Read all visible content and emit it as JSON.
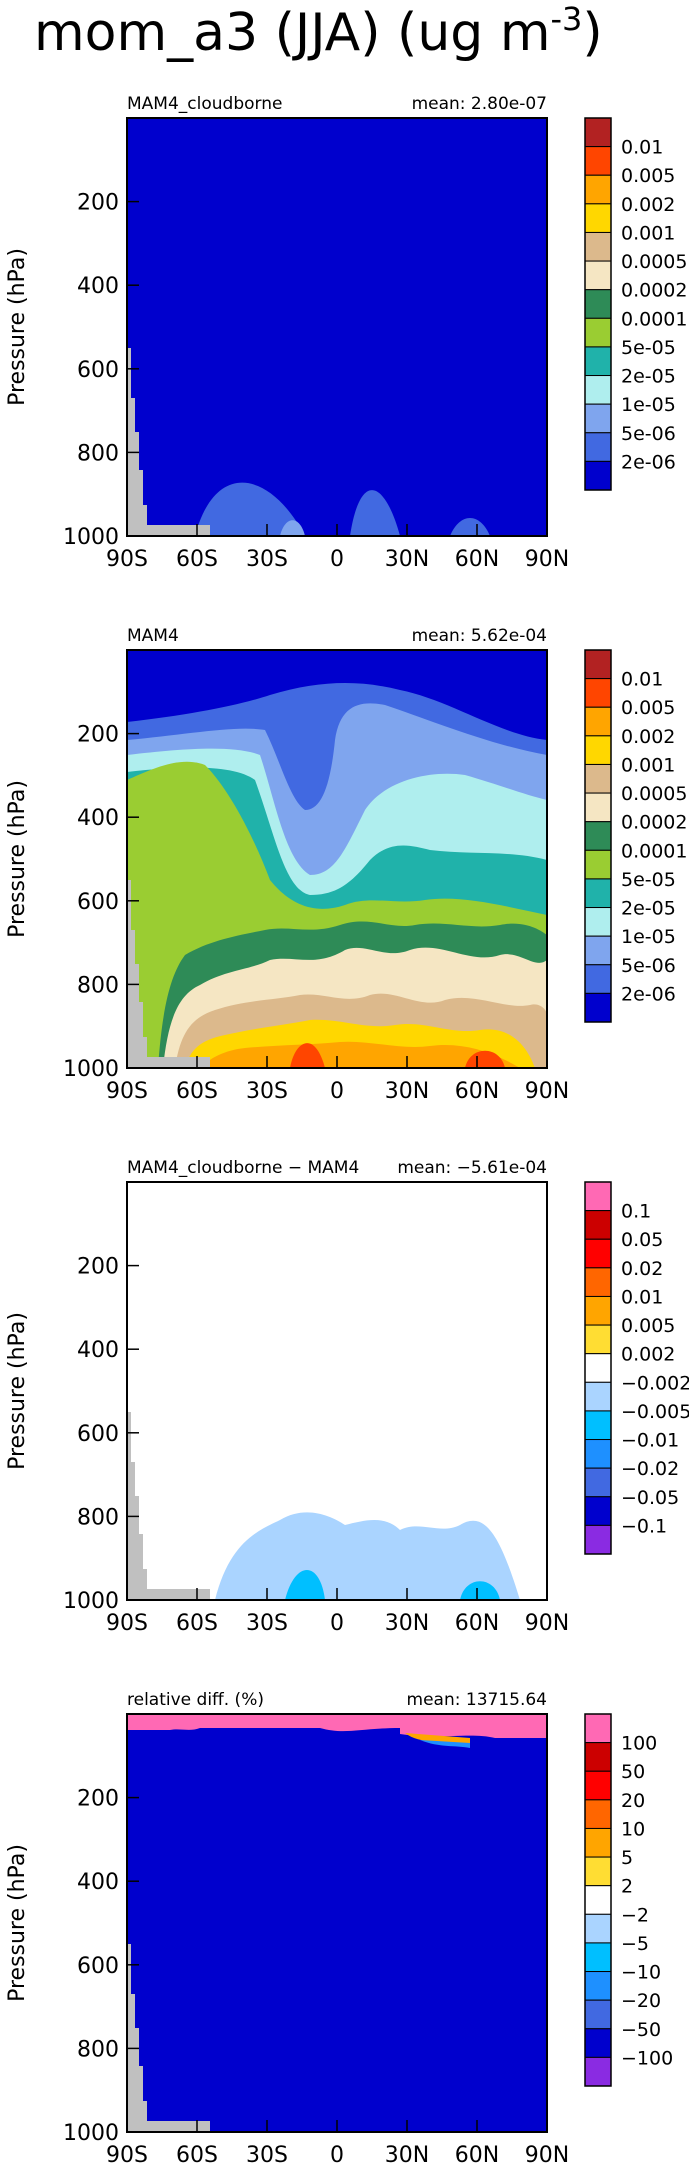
{
  "figure": {
    "title_main": "mom_a3 (JJA) (ug m",
    "title_exp": "-3",
    "title_close": ")"
  },
  "chart_data": [
    {
      "type": "heatmap",
      "id": "panel-1",
      "title": "MAM4_cloudborne",
      "stat_label": "mean:",
      "stat_value": "2.80e-07",
      "ylabel": "Pressure (hPa)",
      "xlabel": "",
      "x_ticks": [
        "90S",
        "60S",
        "30S",
        "0",
        "30N",
        "60N",
        "90N"
      ],
      "y_ticks": [
        "200",
        "400",
        "600",
        "800",
        "1000"
      ],
      "xlim": [
        -90,
        90
      ],
      "ylim": [
        1000,
        0
      ],
      "levels": [
        "0.01",
        "0.005",
        "0.002",
        "0.001",
        "0.0005",
        "0.0002",
        "0.0001",
        "5e-05",
        "2e-05",
        "1e-05",
        "5e-06",
        "2e-06"
      ],
      "colors": [
        "#b22222",
        "#ff4500",
        "#ffa500",
        "#ffd700",
        "#dcb98c",
        "#f5e6c3",
        "#2e8b57",
        "#9acd32",
        "#20b2aa",
        "#afeeee",
        "#7fa5ee",
        "#4169e1",
        "#0000cd"
      ],
      "background_level_index": 12
    },
    {
      "type": "heatmap",
      "id": "panel-2",
      "title": "MAM4",
      "stat_label": "mean:",
      "stat_value": "5.62e-04",
      "ylabel": "Pressure (hPa)",
      "xlabel": "",
      "x_ticks": [
        "90S",
        "60S",
        "30S",
        "0",
        "30N",
        "60N",
        "90N"
      ],
      "y_ticks": [
        "200",
        "400",
        "600",
        "800",
        "1000"
      ],
      "xlim": [
        -90,
        90
      ],
      "ylim": [
        1000,
        0
      ],
      "levels": [
        "0.01",
        "0.005",
        "0.002",
        "0.001",
        "0.0005",
        "0.0002",
        "0.0001",
        "5e-05",
        "2e-05",
        "1e-05",
        "5e-06",
        "2e-06"
      ],
      "colors": [
        "#b22222",
        "#ff4500",
        "#ffa500",
        "#ffd700",
        "#dcb98c",
        "#f5e6c3",
        "#2e8b57",
        "#9acd32",
        "#20b2aa",
        "#afeeee",
        "#7fa5ee",
        "#4169e1",
        "#0000cd"
      ],
      "background_level_index": 12
    },
    {
      "type": "heatmap",
      "id": "panel-3",
      "title": "MAM4_cloudborne − MAM4",
      "stat_label": "mean:",
      "stat_value": "−5.61e-04",
      "ylabel": "Pressure (hPa)",
      "xlabel": "",
      "x_ticks": [
        "90S",
        "60S",
        "30S",
        "0",
        "30N",
        "60N",
        "90N"
      ],
      "y_ticks": [
        "200",
        "400",
        "600",
        "800",
        "1000"
      ],
      "xlim": [
        -90,
        90
      ],
      "ylim": [
        1000,
        0
      ],
      "levels": [
        "0.1",
        "0.05",
        "0.02",
        "0.01",
        "0.005",
        "0.002",
        "−0.002",
        "−0.005",
        "−0.01",
        "−0.02",
        "−0.05",
        "−0.1"
      ],
      "colors": [
        "#ff69b4",
        "#cc0000",
        "#ff0000",
        "#ff6600",
        "#ffa500",
        "#ffdd33",
        "#ffffff",
        "#aad4ff",
        "#00bfff",
        "#1e90ff",
        "#4169e1",
        "#0000cd",
        "#8a2be2"
      ],
      "background_level_index": 6
    },
    {
      "type": "heatmap",
      "id": "panel-4",
      "title": "relative diff. (%)",
      "stat_label": "mean:",
      "stat_value": "13715.64",
      "ylabel": "Pressure (hPa)",
      "xlabel": "",
      "x_ticks": [
        "90S",
        "60S",
        "30S",
        "0",
        "30N",
        "60N",
        "90N"
      ],
      "y_ticks": [
        "200",
        "400",
        "600",
        "800",
        "1000"
      ],
      "xlim": [
        -90,
        90
      ],
      "ylim": [
        1000,
        0
      ],
      "levels": [
        "100",
        "50",
        "20",
        "10",
        "5",
        "2",
        "−2",
        "−5",
        "−10",
        "−20",
        "−50",
        "−100"
      ],
      "colors": [
        "#ff69b4",
        "#cc0000",
        "#ff0000",
        "#ff6600",
        "#ffa500",
        "#ffdd33",
        "#ffffff",
        "#aad4ff",
        "#00bfff",
        "#1e90ff",
        "#4169e1",
        "#0000cd",
        "#8a2be2"
      ],
      "background_level_index": 11
    }
  ]
}
